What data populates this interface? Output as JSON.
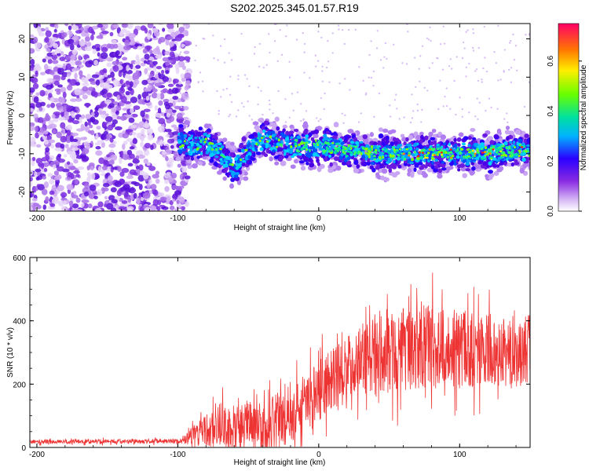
{
  "title": "S202.2025.345.01.57.R19",
  "colors": {
    "snr_line": "#ee3333",
    "axis": "#000000"
  },
  "chart_data": [
    {
      "type": "heatmap",
      "title": "S202.2025.345.01.57.R19",
      "xlabel": "Height of straight line (km)",
      "ylabel": "Frequency (Hz)",
      "xlim": [
        -205,
        150
      ],
      "ylim": [
        -25,
        24
      ],
      "x_ticks": [
        -200,
        -100,
        0,
        100
      ],
      "x_tick_labels": [
        "-200",
        "-100",
        "0",
        "100"
      ],
      "y_ticks": [
        20,
        10,
        0,
        -10,
        -20
      ],
      "y_tick_labels": [
        "20",
        "10",
        "0",
        "-10",
        "-20"
      ],
      "colorbar": {
        "label": "Normalized spectral amplitude",
        "range": [
          0,
          0.75
        ],
        "ticks": [
          0.0,
          0.2,
          0.4,
          0.6
        ],
        "tick_labels": [
          "0.0",
          "0.2",
          "0.4",
          "0.6"
        ]
      },
      "features": {
        "noise_region_x": [
          -205,
          -100
        ],
        "signal_band": [
          [
            -100,
            -7
          ],
          [
            -90,
            -8
          ],
          [
            -80,
            -7
          ],
          [
            -70,
            -10
          ],
          [
            -60,
            -14
          ],
          [
            -50,
            -9
          ],
          [
            -40,
            -6
          ],
          [
            -30,
            -7
          ],
          [
            -20,
            -8
          ],
          [
            0,
            -8
          ],
          [
            20,
            -9
          ],
          [
            40,
            -10
          ],
          [
            60,
            -10
          ],
          [
            80,
            -10
          ],
          [
            100,
            -10
          ],
          [
            120,
            -10
          ],
          [
            150,
            -9
          ]
        ]
      }
    },
    {
      "type": "line",
      "xlabel": "Height of straight line (km)",
      "ylabel": "SNR (10 * v/v)",
      "xlim": [
        -205,
        150
      ],
      "ylim": [
        0,
        600
      ],
      "x_ticks": [
        -200,
        -100,
        0,
        100
      ],
      "x_tick_labels": [
        "-200",
        "-100",
        "0",
        "100"
      ],
      "y_ticks": [
        0,
        200,
        400,
        600
      ],
      "y_tick_labels": [
        "0",
        "200",
        "400",
        "600"
      ],
      "series": [
        {
          "name": "SNR",
          "envelope_x": [
            -205,
            -100,
            -90,
            -80,
            -70,
            -60,
            -50,
            -40,
            -30,
            -20,
            -10,
            0,
            10,
            20,
            30,
            40,
            60,
            80,
            100,
            120,
            150
          ],
          "envelope_mean": [
            18,
            20,
            35,
            50,
            70,
            60,
            75,
            60,
            80,
            110,
            140,
            180,
            220,
            260,
            280,
            300,
            310,
            320,
            310,
            300,
            310
          ],
          "envelope_spread": [
            8,
            8,
            30,
            60,
            80,
            70,
            90,
            90,
            100,
            110,
            110,
            110,
            110,
            110,
            120,
            150,
            150,
            150,
            140,
            130,
            130
          ]
        }
      ]
    }
  ]
}
